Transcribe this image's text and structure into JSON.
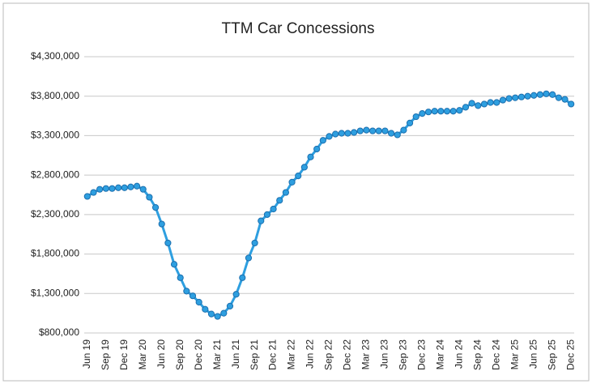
{
  "chart_data": {
    "type": "line",
    "title": "TTM Car Concessions",
    "categories": [
      "Jun 19",
      null,
      null,
      "Sep 19",
      null,
      null,
      "Dec 19",
      null,
      null,
      "Mar 20",
      null,
      null,
      "Jun 20",
      null,
      null,
      "Sep 20",
      null,
      null,
      "Dec 20",
      null,
      null,
      "Mar 21",
      null,
      null,
      "Jun 21",
      null,
      null,
      "Sep 21",
      null,
      null,
      "Dec 21",
      null,
      null,
      "Mar 22",
      null,
      null,
      "Jun 22",
      null,
      null,
      "Sep 22",
      null,
      null,
      "Dec 22",
      null,
      null,
      "Mar 23",
      null,
      null,
      "Jun 23",
      null,
      null,
      "Sep 23",
      null,
      null,
      "Dec 23",
      null,
      null,
      "Mar 24",
      null,
      null,
      "Jun 24",
      null,
      null,
      "Sep 24",
      null,
      null,
      "Dec 24",
      null,
      null,
      "Mar 25",
      null,
      null,
      "Jun 25",
      null,
      null,
      "Sep 25",
      null,
      null,
      "Dec 25"
    ],
    "values": [
      2530000,
      2580000,
      2620000,
      2630000,
      2630000,
      2640000,
      2640000,
      2650000,
      2660000,
      2620000,
      2520000,
      2390000,
      2180000,
      1940000,
      1670000,
      1500000,
      1330000,
      1270000,
      1190000,
      1100000,
      1040000,
      1010000,
      1050000,
      1140000,
      1290000,
      1500000,
      1750000,
      1940000,
      2220000,
      2300000,
      2370000,
      2480000,
      2580000,
      2710000,
      2790000,
      2900000,
      3030000,
      3130000,
      3240000,
      3290000,
      3320000,
      3330000,
      3330000,
      3340000,
      3360000,
      3370000,
      3360000,
      3360000,
      3360000,
      3330000,
      3310000,
      3370000,
      3460000,
      3540000,
      3580000,
      3600000,
      3610000,
      3610000,
      3610000,
      3610000,
      3620000,
      3660000,
      3710000,
      3680000,
      3700000,
      3720000,
      3720000,
      3750000,
      3770000,
      3780000,
      3790000,
      3800000,
      3810000,
      3820000,
      3830000,
      3820000,
      3780000,
      3760000,
      3700000
    ],
    "color": "#2e9fe0",
    "ylim": [
      800000,
      4300000
    ],
    "yticks": [
      {
        "value": 800000,
        "label": "$800,000"
      },
      {
        "value": 1300000,
        "label": "$1,300,000"
      },
      {
        "value": 1800000,
        "label": "$1,800,000"
      },
      {
        "value": 2300000,
        "label": "$2,300,000"
      },
      {
        "value": 2800000,
        "label": "$2,800,000"
      },
      {
        "value": 3300000,
        "label": "$3,300,000"
      },
      {
        "value": 3800000,
        "label": "$3,800,000"
      },
      {
        "value": 4300000,
        "label": "$4,300,000"
      }
    ],
    "grid": true
  }
}
